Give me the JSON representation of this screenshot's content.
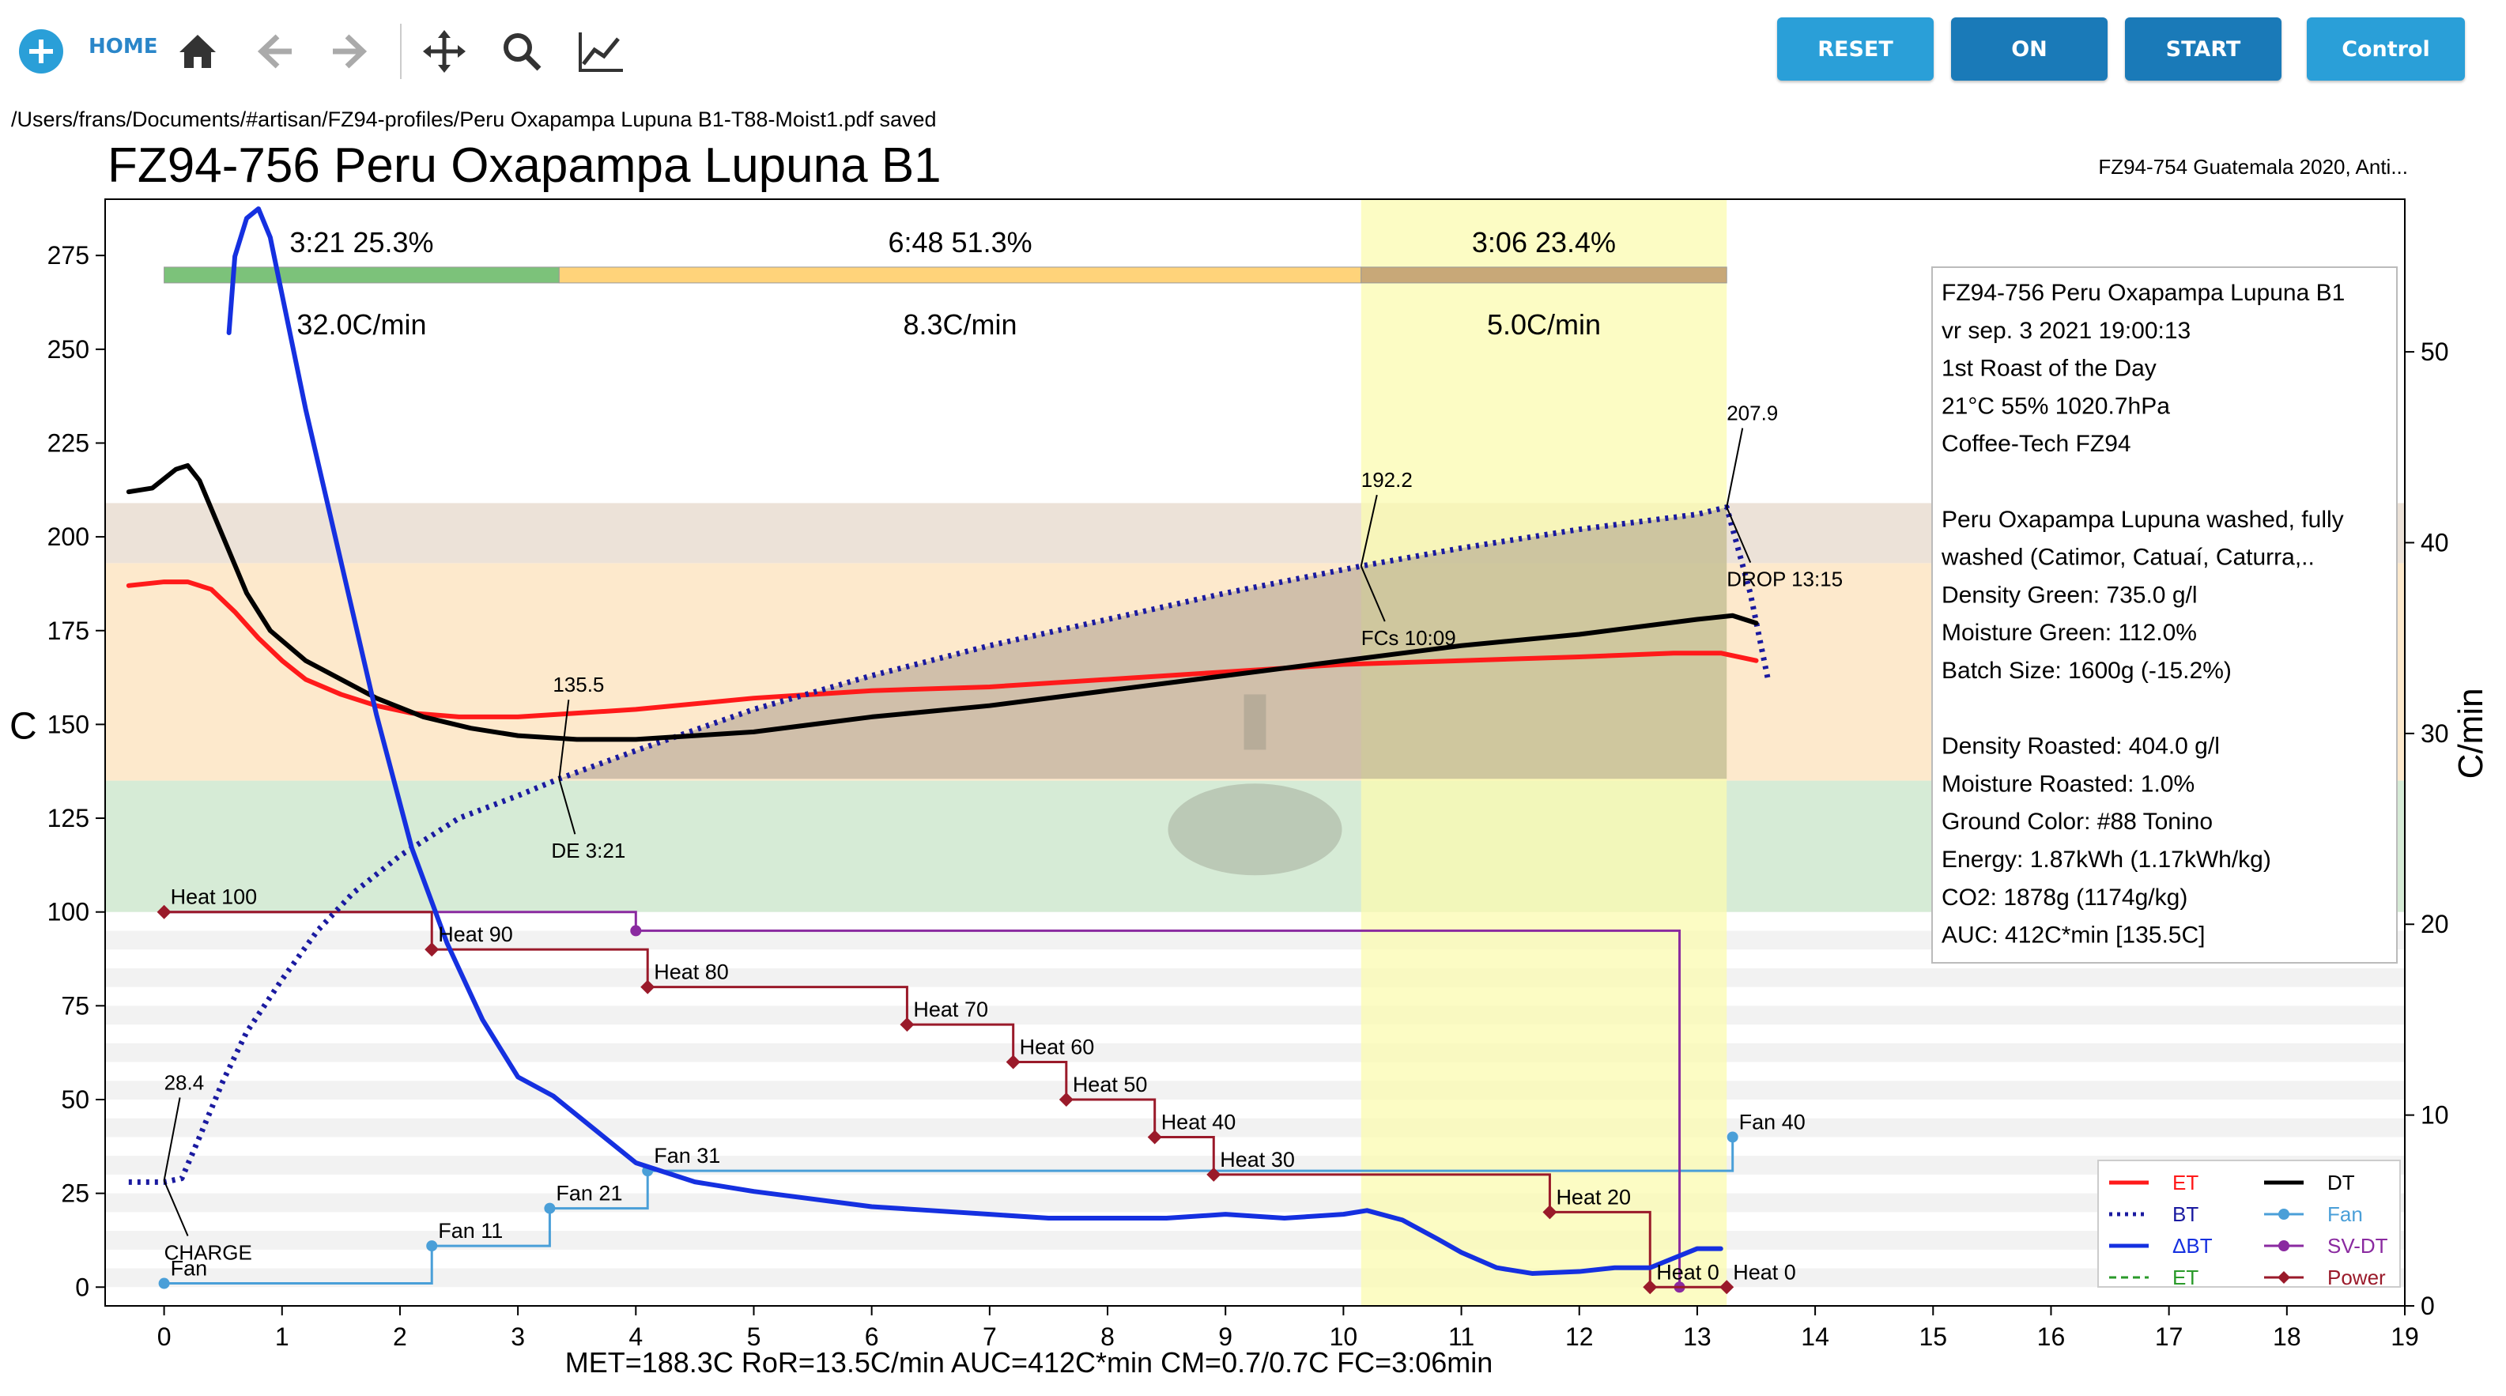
{
  "toolbar": {
    "home_label": "HOME",
    "buttons": [
      {
        "label": "RESET",
        "color": "#2a9fd8"
      },
      {
        "label": "ON",
        "color": "#1a7ab8"
      },
      {
        "label": "START",
        "color": "#1a7ab8"
      },
      {
        "label": "Control",
        "color": "#2a9fd8"
      }
    ]
  },
  "status_message": "/Users/frans/Documents/#artisan/FZ94-profiles/Peru Oxapampa Lupuna B1-T88-Moist1.pdf saved",
  "chart_data": {
    "type": "line",
    "title": "FZ94-756 Peru Oxapampa Lupuna B1",
    "background_title": "FZ94-754 Guatemala 2020, Anti...",
    "xlabel": "",
    "ylabel": "C",
    "y2label": "C/min",
    "xlim": [
      -0.5,
      19
    ],
    "ylim": [
      -5,
      290
    ],
    "y2lim": [
      0,
      58
    ],
    "xticks": [
      0,
      1,
      2,
      3,
      4,
      5,
      6,
      7,
      8,
      9,
      10,
      11,
      12,
      13,
      14,
      15,
      16,
      17,
      18,
      19
    ],
    "yticks": [
      0,
      25,
      50,
      75,
      100,
      125,
      150,
      175,
      200,
      225,
      250,
      275
    ],
    "y2ticks": [
      0,
      10,
      20,
      30,
      40,
      50
    ],
    "phases": [
      {
        "start": 0,
        "end": 3.35,
        "color": "#7cc27a",
        "time_pct": "3:21  25.3%",
        "ror": "32.0C/min"
      },
      {
        "start": 3.35,
        "end": 10.15,
        "color": "#ffd37a",
        "time_pct": "6:48  51.3%",
        "ror": "8.3C/min"
      },
      {
        "start": 10.15,
        "end": 13.25,
        "color": "#c8a878",
        "time_pct": "3:06  23.4%",
        "ror": "5.0C/min"
      }
    ],
    "fc_band": {
      "start": 10.15,
      "end": 13.25,
      "color": "#fbfbb0"
    },
    "bands": [
      {
        "from": 135,
        "to": 193,
        "color": "#fde9cc"
      },
      {
        "from": 193,
        "to": 209,
        "color": "#ece2d8"
      },
      {
        "from": 100,
        "to": 135,
        "color": "#d6ebd6"
      }
    ],
    "series": [
      {
        "name": "ET",
        "color": "#ff1a1a",
        "style": "solid",
        "x": [
          -0.3,
          0,
          0.2,
          0.4,
          0.6,
          0.8,
          1.0,
          1.2,
          1.5,
          1.8,
          2.1,
          2.5,
          3.0,
          3.5,
          4.0,
          5.0,
          6.0,
          7.0,
          8.0,
          9.0,
          10.0,
          11.0,
          12.0,
          12.8,
          13.2,
          13.5
        ],
        "y": [
          187,
          188,
          188,
          186,
          180,
          173,
          167,
          162,
          158,
          155,
          153,
          152,
          152,
          153,
          154,
          157,
          159,
          160,
          162,
          164,
          166,
          167,
          168,
          169,
          169,
          167
        ]
      },
      {
        "name": "BT",
        "color": "#1a1aa0",
        "style": "dotted",
        "x": [
          -0.3,
          0,
          0.15,
          0.3,
          0.5,
          0.7,
          1.0,
          1.3,
          1.6,
          2.0,
          2.5,
          3.0,
          3.35,
          4.0,
          5.0,
          6.0,
          7.0,
          8.0,
          9.0,
          10.15,
          11.0,
          12.0,
          13.0,
          13.25,
          13.45,
          13.6
        ],
        "y": [
          28,
          28,
          29,
          40,
          55,
          68,
          82,
          95,
          105,
          115,
          125,
          131,
          135.5,
          143,
          154,
          163,
          171,
          178,
          185,
          192.2,
          197,
          202,
          206,
          207.9,
          185,
          162
        ]
      },
      {
        "name": "DT",
        "color": "#000000",
        "style": "solid",
        "x": [
          -0.3,
          -0.1,
          0.1,
          0.2,
          0.3,
          0.5,
          0.7,
          0.9,
          1.2,
          1.5,
          1.8,
          2.2,
          2.6,
          3.0,
          3.5,
          4.0,
          5.0,
          6.0,
          7.0,
          8.0,
          9.0,
          10.0,
          11.0,
          12.0,
          13.0,
          13.3,
          13.5
        ],
        "y": [
          212,
          213,
          218,
          219,
          215,
          200,
          185,
          175,
          167,
          162,
          157,
          152,
          149,
          147,
          146,
          146,
          148,
          152,
          155,
          159,
          163,
          167,
          171,
          174,
          178,
          179,
          177
        ]
      },
      {
        "name": "ΔBT",
        "color": "#1530e0",
        "style": "solid",
        "axis": "y2",
        "x": [
          0.55,
          0.6,
          0.7,
          0.8,
          0.9,
          1.0,
          1.2,
          1.5,
          1.8,
          2.1,
          2.4,
          2.7,
          3.0,
          3.3,
          3.7,
          4.0,
          4.5,
          5.0,
          5.5,
          6.0,
          6.5,
          7.0,
          7.5,
          8.0,
          8.5,
          9.0,
          9.5,
          10.0,
          10.2,
          10.5,
          10.8,
          11.0,
          11.3,
          11.6,
          12.0,
          12.3,
          12.6,
          12.8,
          13.0,
          13.2
        ],
        "y": [
          51,
          55,
          57,
          57.5,
          56,
          53,
          47,
          39,
          31,
          24,
          19,
          15,
          12,
          11,
          9,
          7.5,
          6.5,
          6,
          5.6,
          5.2,
          5,
          4.8,
          4.6,
          4.6,
          4.6,
          4.8,
          4.6,
          4.8,
          5,
          4.5,
          3.5,
          2.8,
          2,
          1.7,
          1.8,
          2,
          2,
          2.5,
          3,
          3
        ]
      },
      {
        "name": "Fan",
        "color": "#4a9fd8",
        "style": "step",
        "x": [
          0,
          2.27,
          2.27,
          3.27,
          3.27,
          4.1,
          4.1,
          13.3,
          13.3
        ],
        "y": [
          1,
          1,
          11,
          11,
          21,
          21,
          31,
          31,
          40
        ]
      },
      {
        "name": "SV-DT",
        "color": "#8a2aa0",
        "style": "step",
        "x": [
          0,
          4.0,
          4.0,
          12.85,
          12.85
        ],
        "y": [
          100,
          100,
          95,
          95,
          0
        ]
      },
      {
        "name": "Power",
        "color": "#9a1a2a",
        "style": "step",
        "x": [
          0,
          2.27,
          2.27,
          4.1,
          4.1,
          6.3,
          6.3,
          7.2,
          7.2,
          7.65,
          7.65,
          8.4,
          8.4,
          8.9,
          8.9,
          11.75,
          11.75,
          12.6,
          12.6,
          13.25,
          13.25
        ],
        "y": [
          100,
          100,
          90,
          90,
          80,
          80,
          70,
          70,
          60,
          60,
          50,
          50,
          40,
          40,
          30,
          30,
          20,
          20,
          0,
          0,
          0
        ]
      }
    ],
    "event_labels": [
      {
        "text": "Heat 100",
        "x": 0,
        "y": 100
      },
      {
        "text": "Heat 90",
        "x": 2.27,
        "y": 90
      },
      {
        "text": "Heat 80",
        "x": 4.1,
        "y": 80
      },
      {
        "text": "Heat 70",
        "x": 6.3,
        "y": 70
      },
      {
        "text": "Heat 60",
        "x": 7.2,
        "y": 60
      },
      {
        "text": "Heat 50",
        "x": 7.65,
        "y": 50
      },
      {
        "text": "Heat 40",
        "x": 8.4,
        "y": 40
      },
      {
        "text": "Heat 30",
        "x": 8.9,
        "y": 30
      },
      {
        "text": "Heat 20",
        "x": 11.75,
        "y": 20
      },
      {
        "text": "Heat 0",
        "x": 12.6,
        "y": 0
      },
      {
        "text": "Heat 0",
        "x": 13.25,
        "y": 0
      },
      {
        "text": "Fan",
        "x": 0,
        "y": 1
      },
      {
        "text": "Fan 11",
        "x": 2.27,
        "y": 11
      },
      {
        "text": "Fan 21",
        "x": 3.27,
        "y": 21
      },
      {
        "text": "Fan 31",
        "x": 4.1,
        "y": 31
      },
      {
        "text": "Fan 40",
        "x": 13.3,
        "y": 40
      }
    ],
    "annotations": [
      {
        "text": "28.4",
        "x": 0,
        "y": 28.4
      },
      {
        "text": "CHARGE",
        "x": 0,
        "y": 28.4
      },
      {
        "text": "135.5",
        "x": 3.35,
        "y": 135.5
      },
      {
        "text": "DE 3:21",
        "x": 3.35,
        "y": 135.5
      },
      {
        "text": "192.2",
        "x": 10.15,
        "y": 192.2
      },
      {
        "text": "FCs 10:09",
        "x": 10.15,
        "y": 192.2
      },
      {
        "text": "207.9",
        "x": 13.25,
        "y": 207.9
      },
      {
        "text": "DROP 13:15",
        "x": 13.25,
        "y": 207.9
      }
    ],
    "info_box": [
      "FZ94-756 Peru Oxapampa Lupuna B1",
      "vr sep. 3 2021 19:00:13",
      "1st Roast of the Day",
      "21°C  55%  1020.7hPa",
      "Coffee-Tech FZ94",
      "",
      "Peru Oxapampa Lupuna washed, fully",
      "  washed (Catimor, Catuaí, Caturra,..",
      "Density Green: 735.0 g/l",
      "Moisture Green: 112.0%",
      "Batch Size: 1600g (-15.2%)",
      "",
      "Density Roasted: 404.0 g/l",
      "Moisture Roasted: 1.0%",
      "Ground Color: #88 Tonino",
      "Energy: 1.87kWh (1.17kWh/kg)",
      "CO2: 1878g (1174g/kg)",
      "AUC: 412C*min [135.5C]"
    ],
    "legend": [
      {
        "label": "ET",
        "color": "#ff1a1a",
        "style": "solid"
      },
      {
        "label": "DT",
        "color": "#000000",
        "style": "solid"
      },
      {
        "label": "BT",
        "color": "#1a1aa0",
        "style": "dotted"
      },
      {
        "label": "Fan",
        "color": "#4a9fd8",
        "style": "marker"
      },
      {
        "label": "ΔBT",
        "color": "#1530e0",
        "style": "solid"
      },
      {
        "label": "SV-DT",
        "color": "#8a2aa0",
        "style": "marker"
      },
      {
        "label": "ET",
        "color": "#2a9a2a",
        "style": "dashed"
      },
      {
        "label": "Power",
        "color": "#9a1a2a",
        "style": "diamond"
      }
    ],
    "footer": "MET=188.3C   RoR=13.5C/min   AUC=412C*min   CM=0.7/0.7C   FC=3:06min"
  }
}
